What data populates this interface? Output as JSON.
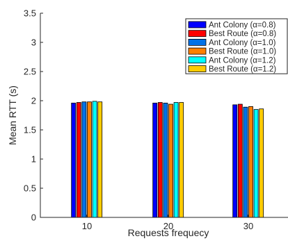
{
  "chart_data": {
    "type": "bar",
    "title": "",
    "xlabel": "Requests frequecy",
    "ylabel": "Mean RTT (s)",
    "ylim": [
      0,
      3.5
    ],
    "yticks": [
      "0",
      "0.5",
      "1",
      "1.5",
      "2",
      "2.5",
      "3",
      "3.5"
    ],
    "ytick_values": [
      0,
      0.5,
      1,
      1.5,
      2,
      2.5,
      3,
      3.5
    ],
    "categories": [
      "10",
      "20",
      "30"
    ],
    "grid": false,
    "legend_position": "top-right",
    "series": [
      {
        "name": "Ant Colony (α=0.8)",
        "color": "#0000ff",
        "values": [
          1.96,
          1.96,
          1.93
        ]
      },
      {
        "name": "Best Route (α=0.8)",
        "color": "#ff0000",
        "values": [
          1.97,
          1.97,
          1.94
        ]
      },
      {
        "name": "Ant Colony (α=1.0)",
        "color": "#0072e8",
        "values": [
          1.98,
          1.96,
          1.89
        ]
      },
      {
        "name": "Best Route (α=1.0)",
        "color": "#ff8000",
        "values": [
          1.98,
          1.94,
          1.9
        ]
      },
      {
        "name": "Ant Colony (α=1.2)",
        "color": "#00ffff",
        "values": [
          1.99,
          1.97,
          1.85
        ]
      },
      {
        "name": "Best Route (α=1.2)",
        "color": "#ffcc00",
        "values": [
          1.98,
          1.97,
          1.86
        ]
      }
    ]
  }
}
